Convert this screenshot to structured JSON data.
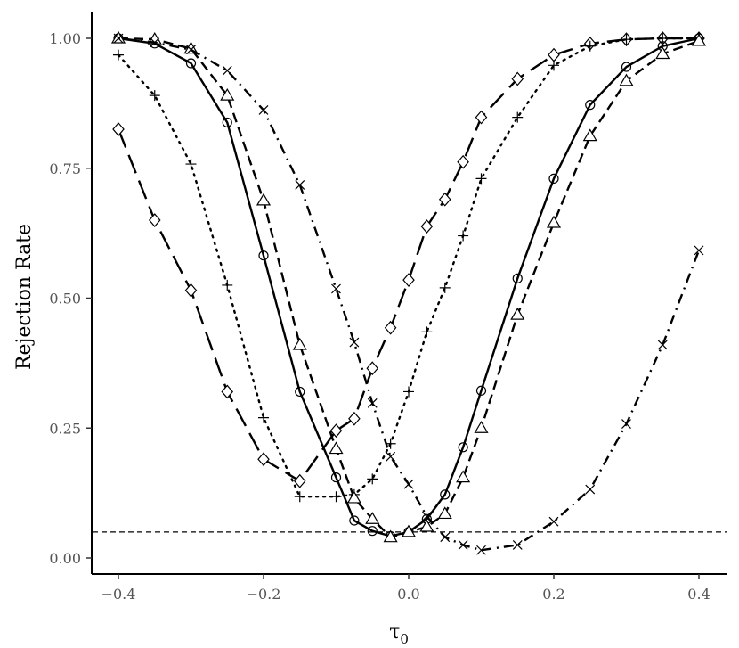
{
  "chart_data": {
    "type": "line",
    "title": "",
    "xlabel": "τ",
    "xlabel_subscript": "0",
    "ylabel": "Rejection Rate",
    "xlim": [
      -0.4,
      0.4
    ],
    "ylim": [
      0,
      1
    ],
    "x_ticks": [
      -0.4,
      -0.2,
      0.0,
      0.2,
      0.4
    ],
    "x_tick_labels": [
      "−0.4",
      "−0.2",
      "0.0",
      "0.2",
      "0.4"
    ],
    "y_ticks": [
      0,
      0.25,
      0.5,
      0.75,
      1.0
    ],
    "y_tick_labels": [
      "0.00",
      "0.25",
      "0.50",
      "0.75",
      "1.00"
    ],
    "grid": false,
    "legend": "none",
    "reference_line": {
      "y": 0.05,
      "style": "dashed"
    },
    "series": [
      {
        "marker": "diamond",
        "linestyle": "longdash",
        "x": [
          -0.4,
          -0.35,
          -0.3,
          -0.25,
          -0.2,
          -0.15,
          -0.1,
          -0.075,
          -0.05,
          -0.025,
          0.0,
          0.025,
          0.05,
          0.075,
          0.1,
          0.15,
          0.2,
          0.25,
          0.3,
          0.35,
          0.4
        ],
        "y": [
          0.825,
          0.65,
          0.515,
          0.32,
          0.19,
          0.148,
          0.245,
          0.268,
          0.365,
          0.443,
          0.535,
          0.638,
          0.69,
          0.762,
          0.848,
          0.922,
          0.968,
          0.99,
          0.998,
          1.0,
          1.0
        ]
      },
      {
        "marker": "plus",
        "linestyle": "dotted",
        "x": [
          -0.4,
          -0.35,
          -0.3,
          -0.25,
          -0.2,
          -0.15,
          -0.1,
          -0.075,
          -0.05,
          -0.025,
          0.0,
          0.025,
          0.05,
          0.075,
          0.1,
          0.15,
          0.2,
          0.25,
          0.3,
          0.35,
          0.4
        ],
        "y": [
          0.968,
          0.89,
          0.758,
          0.525,
          0.27,
          0.118,
          0.118,
          0.122,
          0.152,
          0.22,
          0.32,
          0.435,
          0.52,
          0.62,
          0.73,
          0.848,
          0.948,
          0.985,
          0.998,
          1.0,
          1.0
        ]
      },
      {
        "marker": "circle",
        "linestyle": "solid",
        "x": [
          -0.4,
          -0.35,
          -0.3,
          -0.25,
          -0.2,
          -0.15,
          -0.1,
          -0.075,
          -0.05,
          -0.025,
          0.0,
          0.025,
          0.05,
          0.075,
          0.1,
          0.15,
          0.2,
          0.25,
          0.3,
          0.35,
          0.4
        ],
        "y": [
          1.0,
          0.99,
          0.952,
          0.838,
          0.582,
          0.32,
          0.155,
          0.072,
          0.052,
          0.042,
          0.05,
          0.075,
          0.122,
          0.213,
          0.322,
          0.538,
          0.73,
          0.872,
          0.945,
          0.985,
          1.0
        ]
      },
      {
        "marker": "triangle",
        "linestyle": "dashed",
        "x": [
          -0.4,
          -0.35,
          -0.3,
          -0.25,
          -0.2,
          -0.15,
          -0.1,
          -0.075,
          -0.05,
          -0.025,
          0.0,
          0.025,
          0.05,
          0.075,
          0.1,
          0.15,
          0.2,
          0.25,
          0.3,
          0.35,
          0.4
        ],
        "y": [
          1.0,
          0.998,
          0.98,
          0.89,
          0.688,
          0.41,
          0.21,
          0.115,
          0.075,
          0.04,
          0.05,
          0.06,
          0.085,
          0.155,
          0.25,
          0.468,
          0.645,
          0.812,
          0.918,
          0.97,
          0.995
        ]
      },
      {
        "marker": "x",
        "linestyle": "dotdash",
        "x": [
          -0.4,
          -0.35,
          -0.3,
          -0.25,
          -0.2,
          -0.15,
          -0.1,
          -0.075,
          -0.05,
          -0.025,
          0.0,
          0.025,
          0.05,
          0.075,
          0.1,
          0.15,
          0.2,
          0.25,
          0.3,
          0.35,
          0.4
        ],
        "y": [
          1.0,
          0.992,
          0.978,
          0.938,
          0.862,
          0.718,
          0.518,
          0.415,
          0.298,
          0.195,
          0.142,
          0.08,
          0.04,
          0.025,
          0.015,
          0.025,
          0.07,
          0.132,
          0.258,
          0.41,
          0.592
        ]
      }
    ]
  }
}
